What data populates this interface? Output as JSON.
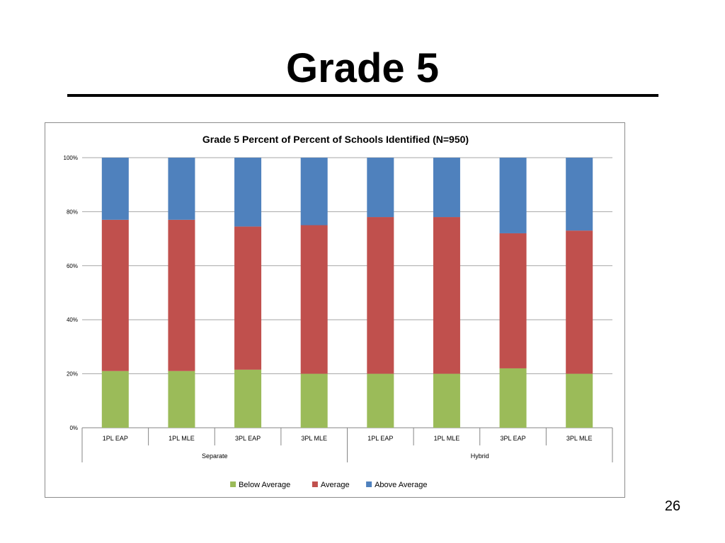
{
  "slide": {
    "title": "Grade 5",
    "page_number": "26"
  },
  "chart_data": {
    "type": "bar",
    "stacked": true,
    "percent_stacked": true,
    "title": "Grade 5 Percent of Percent of Schools Identified (N=950)",
    "xlabel": "",
    "ylabel": "",
    "ylim": [
      0,
      100
    ],
    "y_ticks": [
      "0%",
      "20%",
      "40%",
      "60%",
      "80%",
      "100%"
    ],
    "grid": true,
    "legend_position": "bottom",
    "categories": [
      "1PL EAP",
      "1PL MLE",
      "3PL EAP",
      "3PL MLE",
      "1PL EAP",
      "1PL MLE",
      "3PL EAP",
      "3PL MLE"
    ],
    "groups": [
      {
        "label": "Separate",
        "count": 4
      },
      {
        "label": "Hybrid",
        "count": 4
      }
    ],
    "series": [
      {
        "name": "Below Average",
        "color": "#9bbb59",
        "values": [
          21,
          21,
          21.5,
          20,
          20,
          20,
          22,
          20
        ]
      },
      {
        "name": "Average",
        "color": "#c0504d",
        "values": [
          56,
          56,
          53,
          55,
          58,
          58,
          50,
          53
        ]
      },
      {
        "name": "Above Average",
        "color": "#4f81bd",
        "values": [
          23,
          23,
          25.5,
          25,
          22,
          22,
          28,
          27
        ]
      }
    ]
  }
}
